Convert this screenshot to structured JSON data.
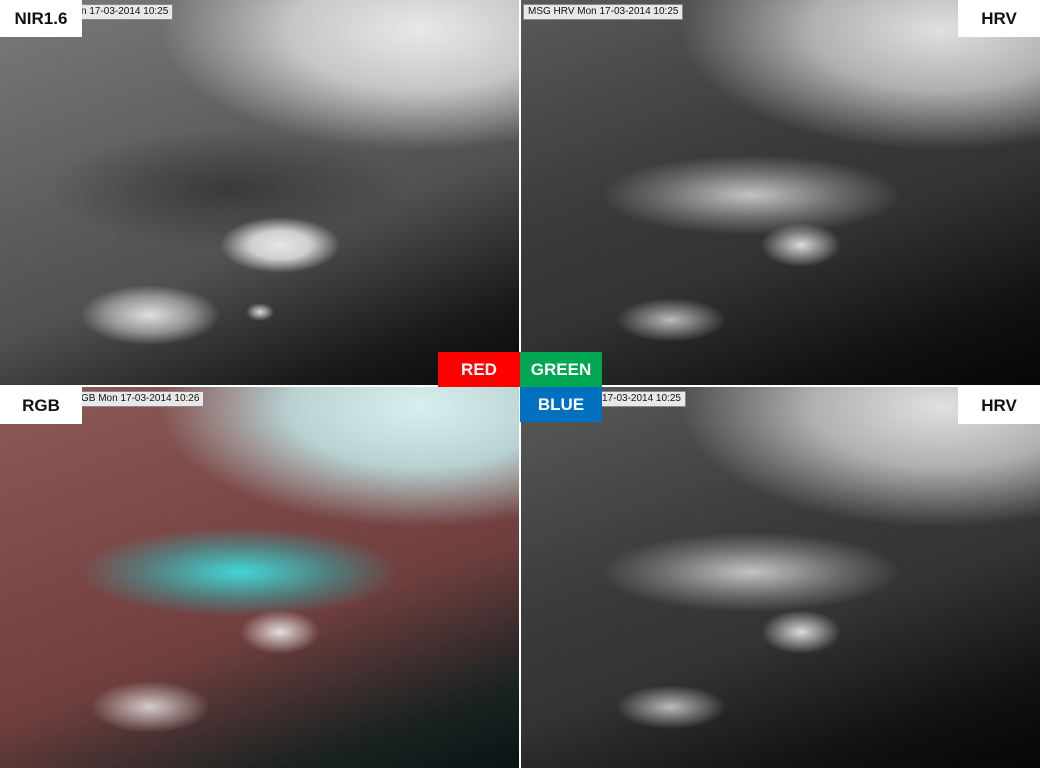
{
  "panels": {
    "top_left": {
      "label": "NIR1.6",
      "timestamp": "n 17-03-2014 10:25"
    },
    "top_right": {
      "label": "HRV",
      "timestamp": "MSG HRV Mon 17-03-2014 10:25"
    },
    "bottom_left": {
      "label": "RGB",
      "timestamp": "GB Mon 17-03-2014 10:26"
    },
    "bottom_right": {
      "label": "HRV",
      "timestamp": "17-03-2014 10:25"
    }
  },
  "channels": {
    "red": {
      "label": "RED",
      "color": "#ff0000"
    },
    "green": {
      "label": "GREEN",
      "color": "#00a651"
    },
    "blue": {
      "label": "BLUE",
      "color": "#0070c0"
    }
  }
}
